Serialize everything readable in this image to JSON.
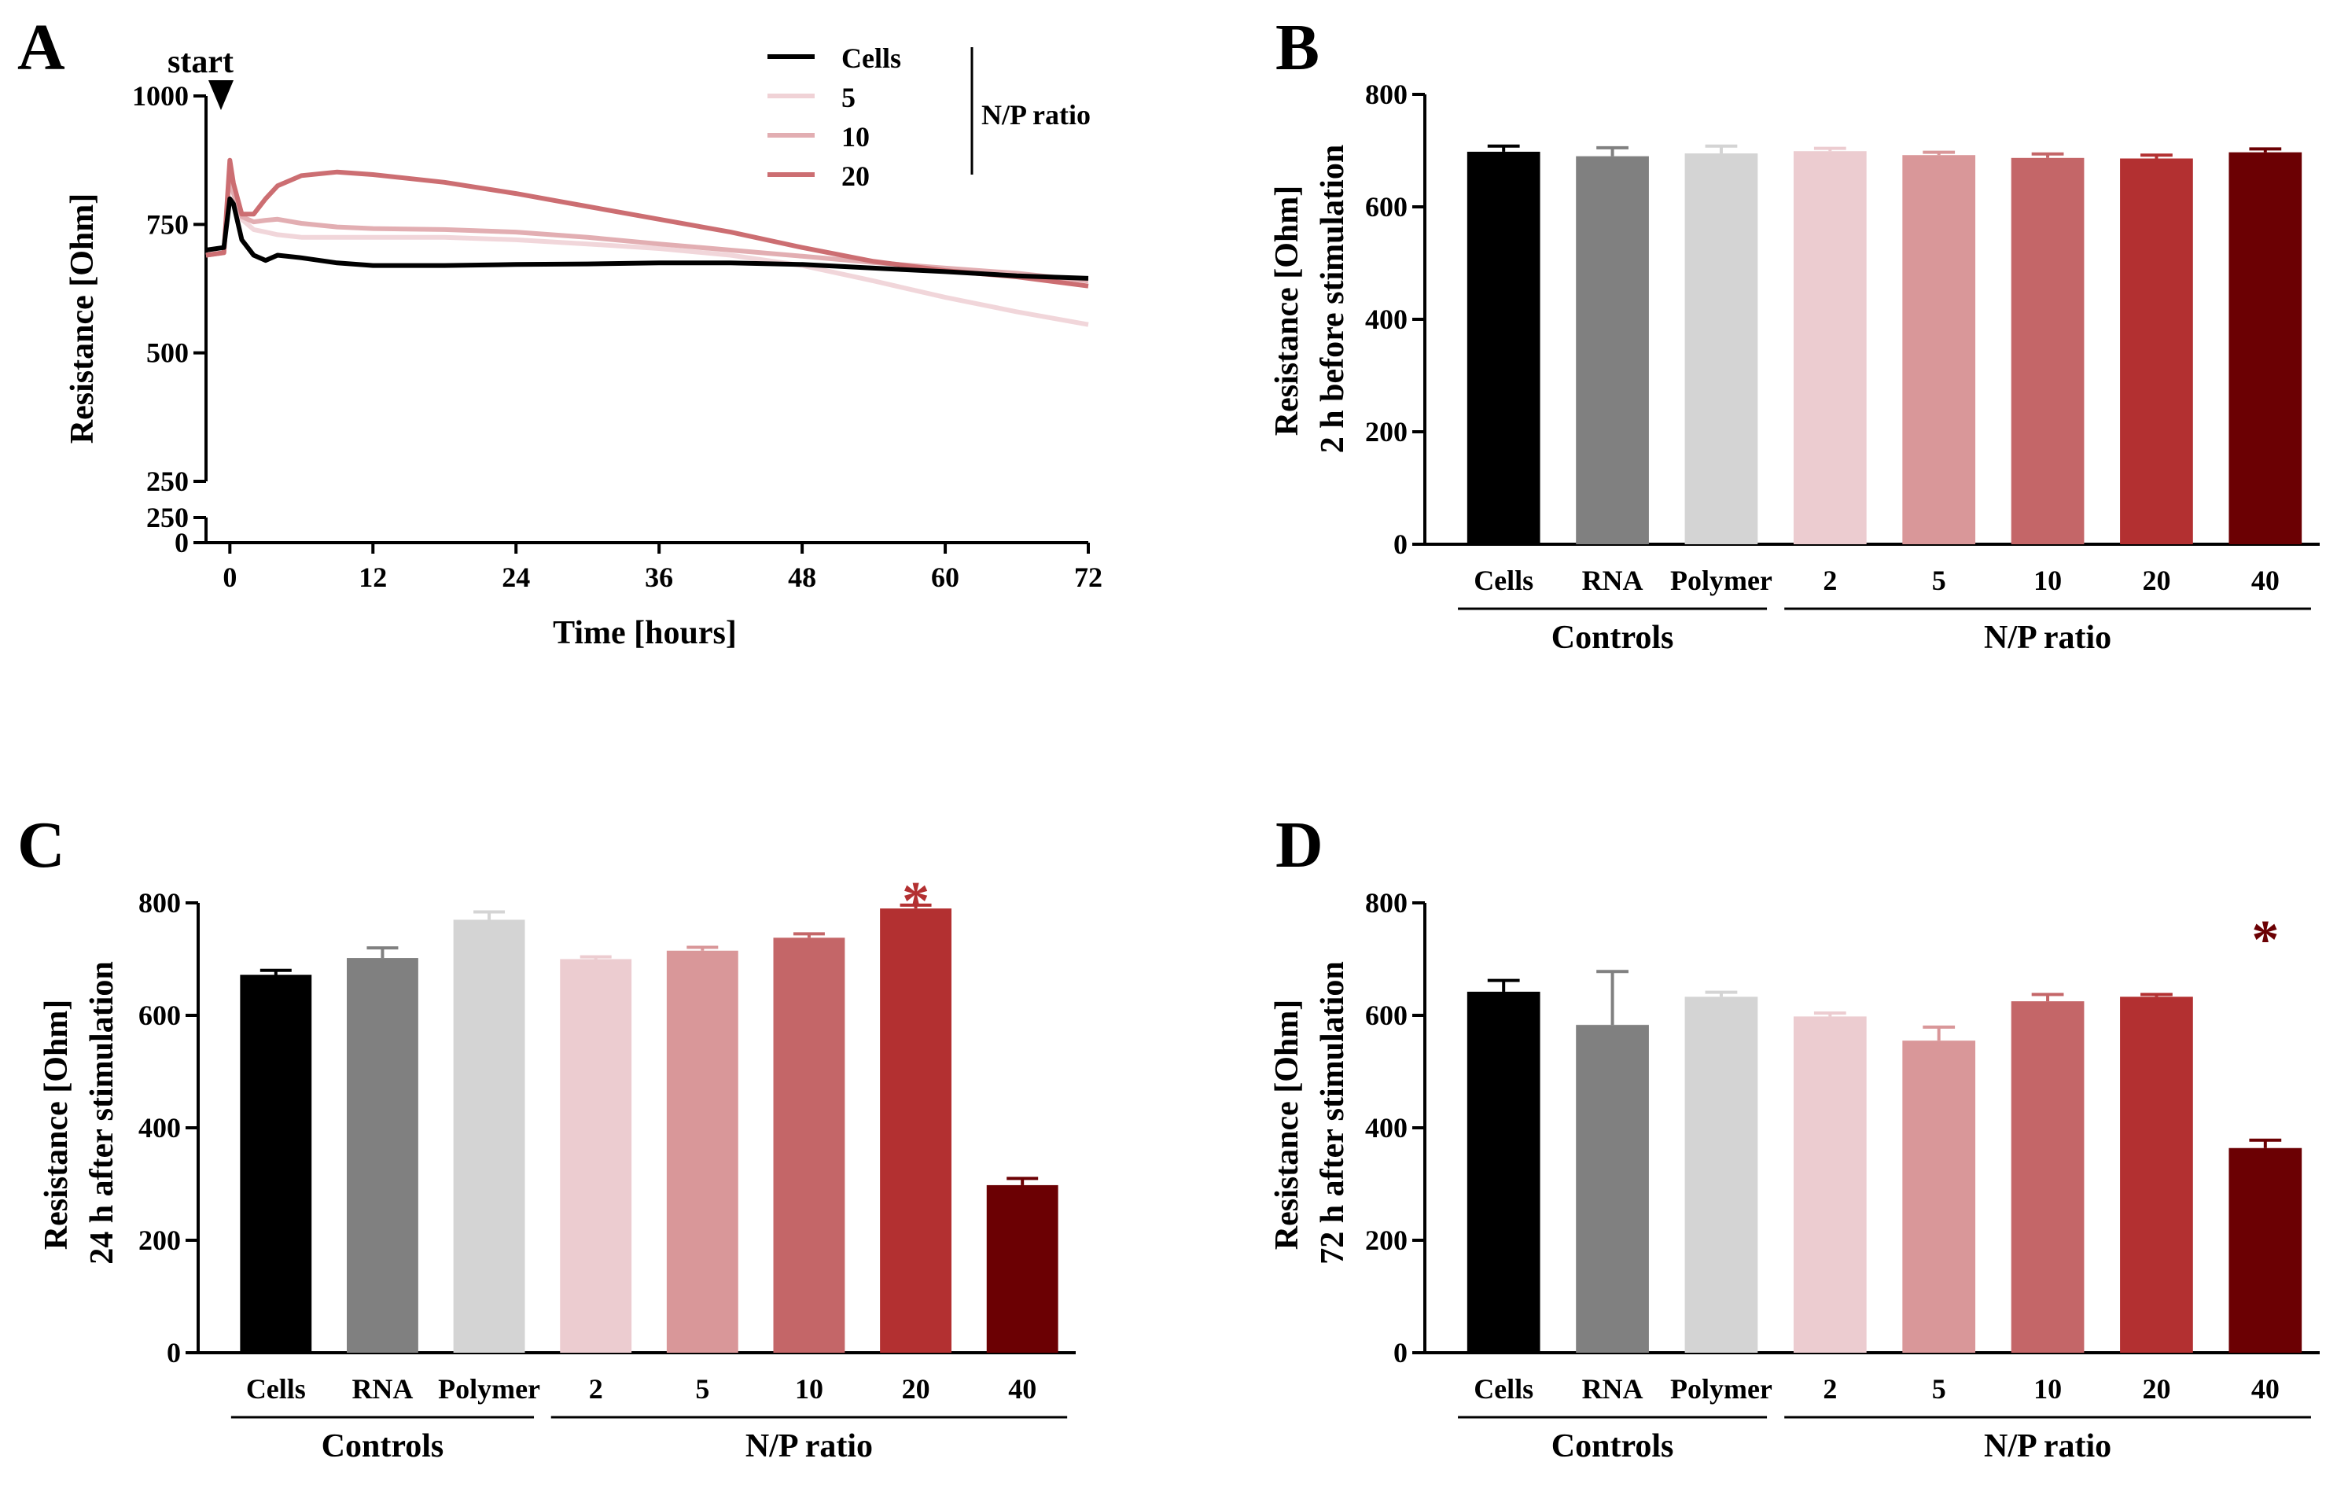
{
  "colors": {
    "cells": "#000000",
    "rna": "#808080",
    "polymer": "#d4d4d4",
    "np2": "#ecccd0",
    "np5": "#d99799",
    "np10": "#c46668",
    "np20": "#b33031",
    "np40": "#6b0003",
    "line5": "#f0d2d6",
    "line10": "#e2aeb2",
    "line20": "#cc6e72"
  },
  "chart_data": [
    {
      "panel": "A",
      "type": "line",
      "xlabel": "Time [hours]",
      "ylabel": "Resistance [Ohm]",
      "xticks": [
        "0",
        "12",
        "24",
        "36",
        "48",
        "60",
        "72"
      ],
      "xlim": [
        -2,
        72
      ],
      "ylim": [
        250,
        1000
      ],
      "yticks": [
        "250",
        "500",
        "750",
        "1000"
      ],
      "ybreak_ticks": [
        "250",
        "0"
      ],
      "annotation": "start",
      "legend_title": "N/P ratio",
      "series": [
        {
          "name": "Cells",
          "color_key": "cells",
          "x": [
            -2,
            -0.5,
            0,
            0.3,
            1,
            2,
            3,
            4,
            6,
            9,
            12,
            18,
            24,
            30,
            36,
            42,
            48,
            54,
            60,
            66,
            72
          ],
          "y": [
            700,
            705,
            800,
            790,
            720,
            690,
            680,
            690,
            685,
            675,
            670,
            670,
            672,
            673,
            675,
            675,
            672,
            665,
            658,
            650,
            645
          ]
        },
        {
          "name": "5",
          "color_key": "line5",
          "x": [
            -2,
            -0.5,
            0,
            0.3,
            1,
            2,
            3,
            4,
            6,
            9,
            12,
            18,
            24,
            30,
            36,
            42,
            48,
            54,
            60,
            66,
            72
          ],
          "y": [
            690,
            695,
            860,
            820,
            760,
            740,
            735,
            730,
            725,
            725,
            725,
            725,
            720,
            712,
            703,
            690,
            670,
            640,
            608,
            580,
            555
          ]
        },
        {
          "name": "10",
          "color_key": "line10",
          "x": [
            -2,
            -0.5,
            0,
            0.3,
            1,
            2,
            3,
            4,
            6,
            9,
            12,
            18,
            24,
            30,
            36,
            42,
            48,
            54,
            60,
            66,
            72
          ],
          "y": [
            690,
            695,
            850,
            810,
            765,
            755,
            758,
            760,
            752,
            745,
            742,
            740,
            735,
            725,
            712,
            700,
            688,
            676,
            665,
            655,
            640
          ]
        },
        {
          "name": "20",
          "color_key": "line20",
          "x": [
            -2,
            -0.5,
            0,
            0.3,
            1,
            2,
            3,
            4,
            6,
            9,
            12,
            18,
            24,
            30,
            36,
            42,
            48,
            54,
            60,
            66,
            72
          ],
          "y": [
            690,
            695,
            875,
            830,
            770,
            770,
            800,
            825,
            845,
            852,
            847,
            832,
            810,
            785,
            760,
            735,
            705,
            678,
            660,
            648,
            630
          ]
        }
      ]
    },
    {
      "panel": "B",
      "type": "bar",
      "ylabel": [
        "Resistance [Ohm]",
        "2 h before stimulation"
      ],
      "ylim": [
        0,
        800
      ],
      "yticks": [
        "0",
        "200",
        "400",
        "600",
        "800"
      ],
      "categories": [
        "Cells",
        "RNA",
        "Polymer",
        "2",
        "5",
        "10",
        "20",
        "40"
      ],
      "color_keys": [
        "cells",
        "rna",
        "polymer",
        "np2",
        "np5",
        "np10",
        "np20",
        "np40"
      ],
      "values": [
        698,
        690,
        695,
        699,
        692,
        687,
        686,
        697
      ],
      "errors": [
        10,
        15,
        13,
        5,
        5,
        7,
        6,
        6
      ],
      "groups": [
        {
          "label": "Controls",
          "from": 0,
          "to": 2
        },
        {
          "label": "N/P ratio",
          "from": 3,
          "to": 7
        }
      ],
      "significance": []
    },
    {
      "panel": "C",
      "type": "bar",
      "ylabel": [
        "Resistance [Ohm]",
        "24 h after stimulation"
      ],
      "ylim": [
        0,
        800
      ],
      "yticks": [
        "0",
        "200",
        "400",
        "600",
        "800"
      ],
      "categories": [
        "Cells",
        "RNA",
        "Polymer",
        "2",
        "5",
        "10",
        "20",
        "40"
      ],
      "color_keys": [
        "cells",
        "rna",
        "polymer",
        "np2",
        "np5",
        "np10",
        "np20",
        "np40"
      ],
      "values": [
        672,
        702,
        770,
        700,
        715,
        738,
        790,
        298
      ],
      "errors": [
        8,
        18,
        14,
        4,
        6,
        7,
        6,
        12
      ],
      "groups": [
        {
          "label": "Controls",
          "from": 0,
          "to": 2
        },
        {
          "label": "N/P ratio",
          "from": 3,
          "to": 7
        }
      ],
      "significance": [
        {
          "category_index": 6,
          "label": "*",
          "color_key": "np20"
        }
      ]
    },
    {
      "panel": "D",
      "type": "bar",
      "ylabel": [
        "Resistance [Ohm]",
        "72 h after stimulation"
      ],
      "ylim": [
        0,
        800
      ],
      "yticks": [
        "0",
        "200",
        "400",
        "600",
        "800"
      ],
      "categories": [
        "Cells",
        "RNA",
        "Polymer",
        "2",
        "5",
        "10",
        "20",
        "40"
      ],
      "color_keys": [
        "cells",
        "rna",
        "polymer",
        "np2",
        "np5",
        "np10",
        "np20",
        "np40"
      ],
      "values": [
        642,
        583,
        633,
        598,
        555,
        625,
        633,
        364
      ],
      "errors": [
        20,
        95,
        8,
        6,
        24,
        12,
        4,
        14
      ],
      "groups": [
        {
          "label": "Controls",
          "from": 0,
          "to": 2
        },
        {
          "label": "N/P ratio",
          "from": 3,
          "to": 7
        }
      ],
      "significance": [
        {
          "category_index": 7,
          "label": "*",
          "color_key": "np40"
        }
      ]
    }
  ]
}
